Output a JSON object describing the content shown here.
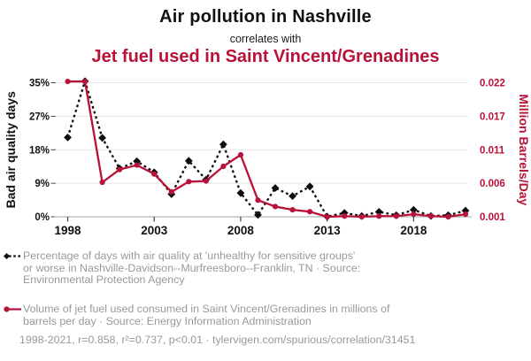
{
  "header": {
    "title": "Air pollution in Nashville",
    "subtitle": "correlates with",
    "title2": "Jet fuel used in Saint Vincent/Grenadines"
  },
  "colors": {
    "accent_red": "#b91238",
    "series_black": "#0d0d0d",
    "gridline": "#e7e7e7",
    "axis_line": "#b3b3b3",
    "tick_mark": "#444444",
    "muted_text": "#999999"
  },
  "chart_data": {
    "type": "line",
    "title": "Air pollution in Nashville correlates with Jet fuel used in Saint Vincent/Grenadines",
    "x": [
      1998,
      1999,
      2000,
      2001,
      2002,
      2003,
      2004,
      2005,
      2006,
      2007,
      2008,
      2009,
      2010,
      2011,
      2012,
      2013,
      2014,
      2015,
      2016,
      2017,
      2018,
      2019,
      2020,
      2021
    ],
    "series": [
      {
        "name": "Bad air quality days (% of days)",
        "axis": "left",
        "color": "#0d0d0d",
        "style": "dotted",
        "marker": "diamond",
        "values": [
          20.7,
          35.4,
          20.6,
          12.6,
          14.5,
          11.6,
          5.9,
          14.6,
          9.7,
          18.9,
          6.2,
          0.5,
          7.5,
          5.4,
          7.9,
          0.05,
          1.0,
          0.2,
          1.3,
          0.4,
          1.8,
          0.2,
          0.4,
          1.6
        ]
      },
      {
        "name": "Jet fuel used in Saint Vincent/Grenadines (Million Barrels/Day)",
        "axis": "right",
        "color": "#b91238",
        "style": "solid",
        "marker": "circle",
        "values": [
          0.0222,
          0.0222,
          0.0064,
          0.0084,
          0.0091,
          0.0077,
          0.0049,
          0.0065,
          0.0066,
          0.0089,
          0.0107,
          0.0036,
          0.0026,
          0.0021,
          0.0018,
          0.001,
          0.0011,
          0.001,
          0.0011,
          0.0011,
          0.0014,
          0.0011,
          0.001,
          0.0014
        ]
      }
    ],
    "left_axis": {
      "label": "Bad air quality days",
      "range": [
        0,
        35
      ],
      "tick_labels": [
        "0%",
        "9%",
        "18%",
        "27%",
        "35%"
      ]
    },
    "right_axis": {
      "label": "Million Barrels/Day",
      "range": [
        0.001,
        0.022
      ],
      "tick_labels": [
        "0.001",
        "0.006",
        "0.011",
        "0.017",
        "0.022"
      ]
    },
    "x_axis": {
      "range": [
        1998,
        2021
      ],
      "tick_years": [
        1998,
        2003,
        2008,
        2013,
        2018
      ]
    },
    "grid": true,
    "legend_position": "below"
  },
  "legend": {
    "air_quality": {
      "lines": [
        "Percentage of days with air quality at 'unhealthy for sensitive groups'",
        "or worse in Nashville-Davidson--Murfreesboro--Franklin, TN · Source:",
        "Environmental Protection Agency"
      ]
    },
    "jet_fuel": {
      "lines": [
        "Volume of jet fuel used consumed in Saint Vincent/Grenadines in millions of",
        "barrels per day · Source: Energy Information Administration"
      ]
    }
  },
  "footer": {
    "text": "1998-2021, r=0.858, r²=0.737, p<0.01 · tylervigen.com/spurious/correlation/31451"
  }
}
